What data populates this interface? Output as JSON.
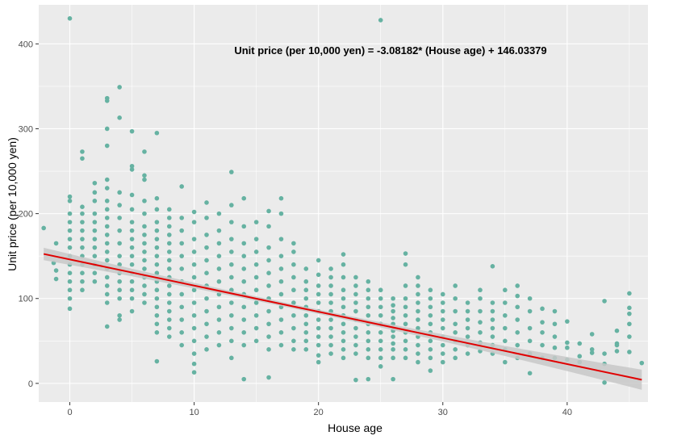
{
  "chart_data": {
    "type": "scatter",
    "xlabel": "House age",
    "ylabel": "Unit price (per 10,000 yen)",
    "annotation": "Unit price (per 10,000 yen) = -3.08182* (House age) + 146.03379",
    "xlim": [
      -2.5,
      46.5
    ],
    "ylim": [
      -22,
      446
    ],
    "x_ticks": [
      0,
      10,
      20,
      30,
      40
    ],
    "y_ticks": [
      0,
      100,
      200,
      300,
      400
    ],
    "grid": true,
    "legend": "none",
    "colors": {
      "panel": "#ebebeb",
      "grid": "#ffffff",
      "point": "#66b2a2",
      "fit_line": "#e00000",
      "confidence_band": "#c8c8c8"
    },
    "regression": {
      "slope": -3.08182,
      "intercept": 146.03379,
      "x_start": -2.1,
      "x_end": 46.0
    },
    "points": [
      [
        -2.1,
        183
      ],
      [
        -1.3,
        142
      ],
      [
        -1.1,
        133
      ],
      [
        -1.1,
        123
      ],
      [
        -1.1,
        165
      ],
      [
        0,
        430
      ],
      [
        0,
        220
      ],
      [
        0,
        215
      ],
      [
        0,
        200
      ],
      [
        0,
        190
      ],
      [
        0,
        180
      ],
      [
        0,
        170
      ],
      [
        0,
        160
      ],
      [
        0,
        150
      ],
      [
        0,
        140
      ],
      [
        0,
        130
      ],
      [
        0,
        120
      ],
      [
        0,
        110
      ],
      [
        0,
        100
      ],
      [
        0,
        88
      ],
      [
        1,
        273
      ],
      [
        1,
        265
      ],
      [
        1,
        208
      ],
      [
        1,
        200
      ],
      [
        1,
        190
      ],
      [
        1,
        180
      ],
      [
        1,
        170
      ],
      [
        1,
        160
      ],
      [
        1,
        150
      ],
      [
        1,
        140
      ],
      [
        1,
        130
      ],
      [
        1,
        120
      ],
      [
        1,
        110
      ],
      [
        2,
        236
      ],
      [
        2,
        225
      ],
      [
        2,
        215
      ],
      [
        2,
        200
      ],
      [
        2,
        190
      ],
      [
        2,
        180
      ],
      [
        2,
        170
      ],
      [
        2,
        160
      ],
      [
        2,
        150
      ],
      [
        2,
        140
      ],
      [
        2,
        130
      ],
      [
        2,
        120
      ],
      [
        3,
        336
      ],
      [
        3,
        333
      ],
      [
        3,
        300
      ],
      [
        3,
        280
      ],
      [
        3,
        240
      ],
      [
        3,
        230
      ],
      [
        3,
        215
      ],
      [
        3,
        205
      ],
      [
        3,
        195
      ],
      [
        3,
        185
      ],
      [
        3,
        175
      ],
      [
        3,
        165
      ],
      [
        3,
        155
      ],
      [
        3,
        145
      ],
      [
        3,
        135
      ],
      [
        3,
        125
      ],
      [
        3,
        115
      ],
      [
        3,
        105
      ],
      [
        3,
        95
      ],
      [
        3,
        67
      ],
      [
        4,
        349
      ],
      [
        4,
        313
      ],
      [
        4,
        225
      ],
      [
        4,
        210
      ],
      [
        4,
        195
      ],
      [
        4,
        180
      ],
      [
        4,
        165
      ],
      [
        4,
        150
      ],
      [
        4,
        140
      ],
      [
        4,
        130
      ],
      [
        4,
        120
      ],
      [
        4,
        110
      ],
      [
        4,
        100
      ],
      [
        4,
        80
      ],
      [
        4,
        75
      ],
      [
        5,
        297
      ],
      [
        5,
        256
      ],
      [
        5,
        252
      ],
      [
        5,
        222
      ],
      [
        5,
        205
      ],
      [
        5,
        190
      ],
      [
        5,
        180
      ],
      [
        5,
        170
      ],
      [
        5,
        160
      ],
      [
        5,
        150
      ],
      [
        5,
        140
      ],
      [
        5,
        130
      ],
      [
        5,
        120
      ],
      [
        5,
        110
      ],
      [
        5,
        100
      ],
      [
        5,
        85
      ],
      [
        6,
        273
      ],
      [
        6,
        245
      ],
      [
        6,
        240
      ],
      [
        6,
        215
      ],
      [
        6,
        200
      ],
      [
        6,
        185
      ],
      [
        6,
        175
      ],
      [
        6,
        165
      ],
      [
        6,
        155
      ],
      [
        6,
        145
      ],
      [
        6,
        135
      ],
      [
        6,
        125
      ],
      [
        6,
        115
      ],
      [
        6,
        105
      ],
      [
        6,
        95
      ],
      [
        7,
        295
      ],
      [
        7,
        218
      ],
      [
        7,
        205
      ],
      [
        7,
        190
      ],
      [
        7,
        180
      ],
      [
        7,
        170
      ],
      [
        7,
        160
      ],
      [
        7,
        150
      ],
      [
        7,
        140
      ],
      [
        7,
        130
      ],
      [
        7,
        120
      ],
      [
        7,
        110
      ],
      [
        7,
        100
      ],
      [
        7,
        90
      ],
      [
        7,
        80
      ],
      [
        7,
        70
      ],
      [
        7,
        60
      ],
      [
        7,
        26
      ],
      [
        8,
        205
      ],
      [
        8,
        195
      ],
      [
        8,
        185
      ],
      [
        8,
        175
      ],
      [
        8,
        165
      ],
      [
        8,
        155
      ],
      [
        8,
        145
      ],
      [
        8,
        135
      ],
      [
        8,
        125
      ],
      [
        8,
        115
      ],
      [
        8,
        105
      ],
      [
        8,
        95
      ],
      [
        8,
        85
      ],
      [
        8,
        75
      ],
      [
        8,
        65
      ],
      [
        8,
        55
      ],
      [
        9,
        232
      ],
      [
        9,
        195
      ],
      [
        9,
        180
      ],
      [
        9,
        165
      ],
      [
        9,
        150
      ],
      [
        9,
        135
      ],
      [
        9,
        120
      ],
      [
        9,
        105
      ],
      [
        9,
        90
      ],
      [
        9,
        75
      ],
      [
        9,
        60
      ],
      [
        9,
        45
      ],
      [
        10,
        202
      ],
      [
        10,
        190
      ],
      [
        10,
        170
      ],
      [
        10,
        155
      ],
      [
        10,
        140
      ],
      [
        10,
        125
      ],
      [
        10,
        110
      ],
      [
        10,
        95
      ],
      [
        10,
        80
      ],
      [
        10,
        65
      ],
      [
        10,
        50
      ],
      [
        10,
        35
      ],
      [
        10,
        23
      ],
      [
        10,
        13
      ],
      [
        11,
        213
      ],
      [
        11,
        195
      ],
      [
        11,
        175
      ],
      [
        11,
        160
      ],
      [
        11,
        145
      ],
      [
        11,
        130
      ],
      [
        11,
        115
      ],
      [
        11,
        100
      ],
      [
        11,
        85
      ],
      [
        11,
        70
      ],
      [
        11,
        55
      ],
      [
        11,
        40
      ],
      [
        12,
        200
      ],
      [
        12,
        180
      ],
      [
        12,
        165
      ],
      [
        12,
        150
      ],
      [
        12,
        135
      ],
      [
        12,
        120
      ],
      [
        12,
        105
      ],
      [
        12,
        90
      ],
      [
        12,
        75
      ],
      [
        12,
        60
      ],
      [
        12,
        45
      ],
      [
        13,
        249
      ],
      [
        13,
        210
      ],
      [
        13,
        190
      ],
      [
        13,
        170
      ],
      [
        13,
        155
      ],
      [
        13,
        140
      ],
      [
        13,
        125
      ],
      [
        13,
        110
      ],
      [
        13,
        95
      ],
      [
        13,
        80
      ],
      [
        13,
        65
      ],
      [
        13,
        50
      ],
      [
        13,
        30
      ],
      [
        14,
        218
      ],
      [
        14,
        185
      ],
      [
        14,
        165
      ],
      [
        14,
        150
      ],
      [
        14,
        135
      ],
      [
        14,
        120
      ],
      [
        14,
        105
      ],
      [
        14,
        90
      ],
      [
        14,
        75
      ],
      [
        14,
        60
      ],
      [
        14,
        45
      ],
      [
        14,
        5
      ],
      [
        15,
        190
      ],
      [
        15,
        170
      ],
      [
        15,
        155
      ],
      [
        15,
        140
      ],
      [
        15,
        125
      ],
      [
        15,
        110
      ],
      [
        15,
        95
      ],
      [
        15,
        80
      ],
      [
        15,
        65
      ],
      [
        15,
        50
      ],
      [
        16,
        203
      ],
      [
        16,
        185
      ],
      [
        16,
        160
      ],
      [
        16,
        145
      ],
      [
        16,
        130
      ],
      [
        16,
        115
      ],
      [
        16,
        100
      ],
      [
        16,
        85
      ],
      [
        16,
        70
      ],
      [
        16,
        55
      ],
      [
        16,
        40
      ],
      [
        16,
        7
      ],
      [
        17,
        218
      ],
      [
        17,
        200
      ],
      [
        17,
        170
      ],
      [
        17,
        150
      ],
      [
        17,
        135
      ],
      [
        17,
        120
      ],
      [
        17,
        105
      ],
      [
        17,
        90
      ],
      [
        17,
        75
      ],
      [
        17,
        60
      ],
      [
        17,
        45
      ],
      [
        18,
        165
      ],
      [
        18,
        155
      ],
      [
        18,
        140
      ],
      [
        18,
        125
      ],
      [
        18,
        110
      ],
      [
        18,
        95
      ],
      [
        18,
        80
      ],
      [
        18,
        65
      ],
      [
        18,
        50
      ],
      [
        18,
        40
      ],
      [
        19,
        135
      ],
      [
        19,
        120
      ],
      [
        19,
        110
      ],
      [
        19,
        100
      ],
      [
        19,
        90
      ],
      [
        19,
        80
      ],
      [
        19,
        70
      ],
      [
        19,
        60
      ],
      [
        19,
        50
      ],
      [
        19,
        40
      ],
      [
        20,
        145
      ],
      [
        20,
        128
      ],
      [
        20,
        115
      ],
      [
        20,
        105
      ],
      [
        20,
        95
      ],
      [
        20,
        85
      ],
      [
        20,
        75
      ],
      [
        20,
        65
      ],
      [
        20,
        55
      ],
      [
        20,
        45
      ],
      [
        20,
        33
      ],
      [
        20,
        25
      ],
      [
        21,
        135
      ],
      [
        21,
        125
      ],
      [
        21,
        115
      ],
      [
        21,
        105
      ],
      [
        21,
        95
      ],
      [
        21,
        85
      ],
      [
        21,
        75
      ],
      [
        21,
        65
      ],
      [
        21,
        55
      ],
      [
        21,
        45
      ],
      [
        21,
        35
      ],
      [
        22,
        152
      ],
      [
        22,
        140
      ],
      [
        22,
        125
      ],
      [
        22,
        110
      ],
      [
        22,
        100
      ],
      [
        22,
        90
      ],
      [
        22,
        80
      ],
      [
        22,
        70
      ],
      [
        22,
        60
      ],
      [
        22,
        50
      ],
      [
        22,
        40
      ],
      [
        22,
        30
      ],
      [
        23,
        125
      ],
      [
        23,
        115
      ],
      [
        23,
        105
      ],
      [
        23,
        95
      ],
      [
        23,
        85
      ],
      [
        23,
        75
      ],
      [
        23,
        65
      ],
      [
        23,
        55
      ],
      [
        23,
        45
      ],
      [
        23,
        35
      ],
      [
        23,
        4
      ],
      [
        24,
        120
      ],
      [
        24,
        110
      ],
      [
        24,
        100
      ],
      [
        24,
        90
      ],
      [
        24,
        80
      ],
      [
        24,
        70
      ],
      [
        24,
        60
      ],
      [
        24,
        50
      ],
      [
        24,
        40
      ],
      [
        24,
        30
      ],
      [
        24,
        5
      ],
      [
        25,
        428
      ],
      [
        25,
        110
      ],
      [
        25,
        100
      ],
      [
        25,
        90
      ],
      [
        25,
        80
      ],
      [
        25,
        70
      ],
      [
        25,
        60
      ],
      [
        25,
        50
      ],
      [
        25,
        40
      ],
      [
        25,
        30
      ],
      [
        25,
        20
      ],
      [
        26,
        100
      ],
      [
        26,
        92
      ],
      [
        26,
        85
      ],
      [
        26,
        77
      ],
      [
        26,
        70
      ],
      [
        26,
        62
      ],
      [
        26,
        55
      ],
      [
        26,
        47
      ],
      [
        26,
        40
      ],
      [
        26,
        30
      ],
      [
        26,
        5
      ],
      [
        27,
        153
      ],
      [
        27,
        140
      ],
      [
        27,
        115
      ],
      [
        27,
        100
      ],
      [
        27,
        90
      ],
      [
        27,
        80
      ],
      [
        27,
        70
      ],
      [
        27,
        60
      ],
      [
        27,
        50
      ],
      [
        27,
        40
      ],
      [
        27,
        30
      ],
      [
        28,
        125
      ],
      [
        28,
        115
      ],
      [
        28,
        105
      ],
      [
        28,
        95
      ],
      [
        28,
        85
      ],
      [
        28,
        75
      ],
      [
        28,
        65
      ],
      [
        28,
        55
      ],
      [
        28,
        45
      ],
      [
        28,
        35
      ],
      [
        28,
        25
      ],
      [
        29,
        110
      ],
      [
        29,
        100
      ],
      [
        29,
        90
      ],
      [
        29,
        80
      ],
      [
        29,
        70
      ],
      [
        29,
        60
      ],
      [
        29,
        50
      ],
      [
        29,
        40
      ],
      [
        29,
        30
      ],
      [
        29,
        15
      ],
      [
        30,
        105
      ],
      [
        30,
        95
      ],
      [
        30,
        85
      ],
      [
        30,
        75
      ],
      [
        30,
        65
      ],
      [
        30,
        55
      ],
      [
        30,
        45
      ],
      [
        30,
        35
      ],
      [
        30,
        25
      ],
      [
        31,
        115
      ],
      [
        31,
        100
      ],
      [
        31,
        85
      ],
      [
        31,
        70
      ],
      [
        31,
        60
      ],
      [
        31,
        50
      ],
      [
        31,
        40
      ],
      [
        31,
        30
      ],
      [
        32,
        95
      ],
      [
        32,
        85
      ],
      [
        32,
        75
      ],
      [
        32,
        65
      ],
      [
        32,
        55
      ],
      [
        32,
        45
      ],
      [
        32,
        35
      ],
      [
        33,
        110
      ],
      [
        33,
        100
      ],
      [
        33,
        85
      ],
      [
        33,
        72
      ],
      [
        33,
        60
      ],
      [
        33,
        48
      ],
      [
        33,
        38
      ],
      [
        34,
        138
      ],
      [
        34,
        95
      ],
      [
        34,
        85
      ],
      [
        34,
        75
      ],
      [
        34,
        65
      ],
      [
        34,
        55
      ],
      [
        34,
        45
      ],
      [
        34,
        35
      ],
      [
        35,
        110
      ],
      [
        35,
        95
      ],
      [
        35,
        80
      ],
      [
        35,
        65
      ],
      [
        35,
        50
      ],
      [
        35,
        40
      ],
      [
        35,
        25
      ],
      [
        36,
        115
      ],
      [
        36,
        103
      ],
      [
        36,
        90
      ],
      [
        36,
        75
      ],
      [
        36,
        60
      ],
      [
        36,
        45
      ],
      [
        36,
        30
      ],
      [
        37,
        100
      ],
      [
        37,
        85
      ],
      [
        37,
        65
      ],
      [
        37,
        50
      ],
      [
        37,
        35
      ],
      [
        37,
        12
      ],
      [
        38,
        88
      ],
      [
        38,
        72
      ],
      [
        38,
        60
      ],
      [
        38,
        45
      ],
      [
        38,
        30
      ],
      [
        39,
        85
      ],
      [
        39,
        70
      ],
      [
        39,
        55
      ],
      [
        39,
        42
      ],
      [
        39,
        30
      ],
      [
        40,
        73
      ],
      [
        40,
        48
      ],
      [
        40,
        42
      ],
      [
        40,
        28
      ],
      [
        41,
        47
      ],
      [
        41,
        32
      ],
      [
        41,
        25
      ],
      [
        42,
        58
      ],
      [
        42,
        40
      ],
      [
        42,
        36
      ],
      [
        43,
        97
      ],
      [
        43,
        35
      ],
      [
        43,
        23
      ],
      [
        43,
        1
      ],
      [
        44,
        62
      ],
      [
        44,
        47
      ],
      [
        44,
        45
      ],
      [
        44,
        38
      ],
      [
        45,
        106
      ],
      [
        45,
        89
      ],
      [
        45,
        82
      ],
      [
        45,
        70
      ],
      [
        45,
        55
      ],
      [
        45,
        37
      ],
      [
        46,
        24
      ]
    ]
  }
}
